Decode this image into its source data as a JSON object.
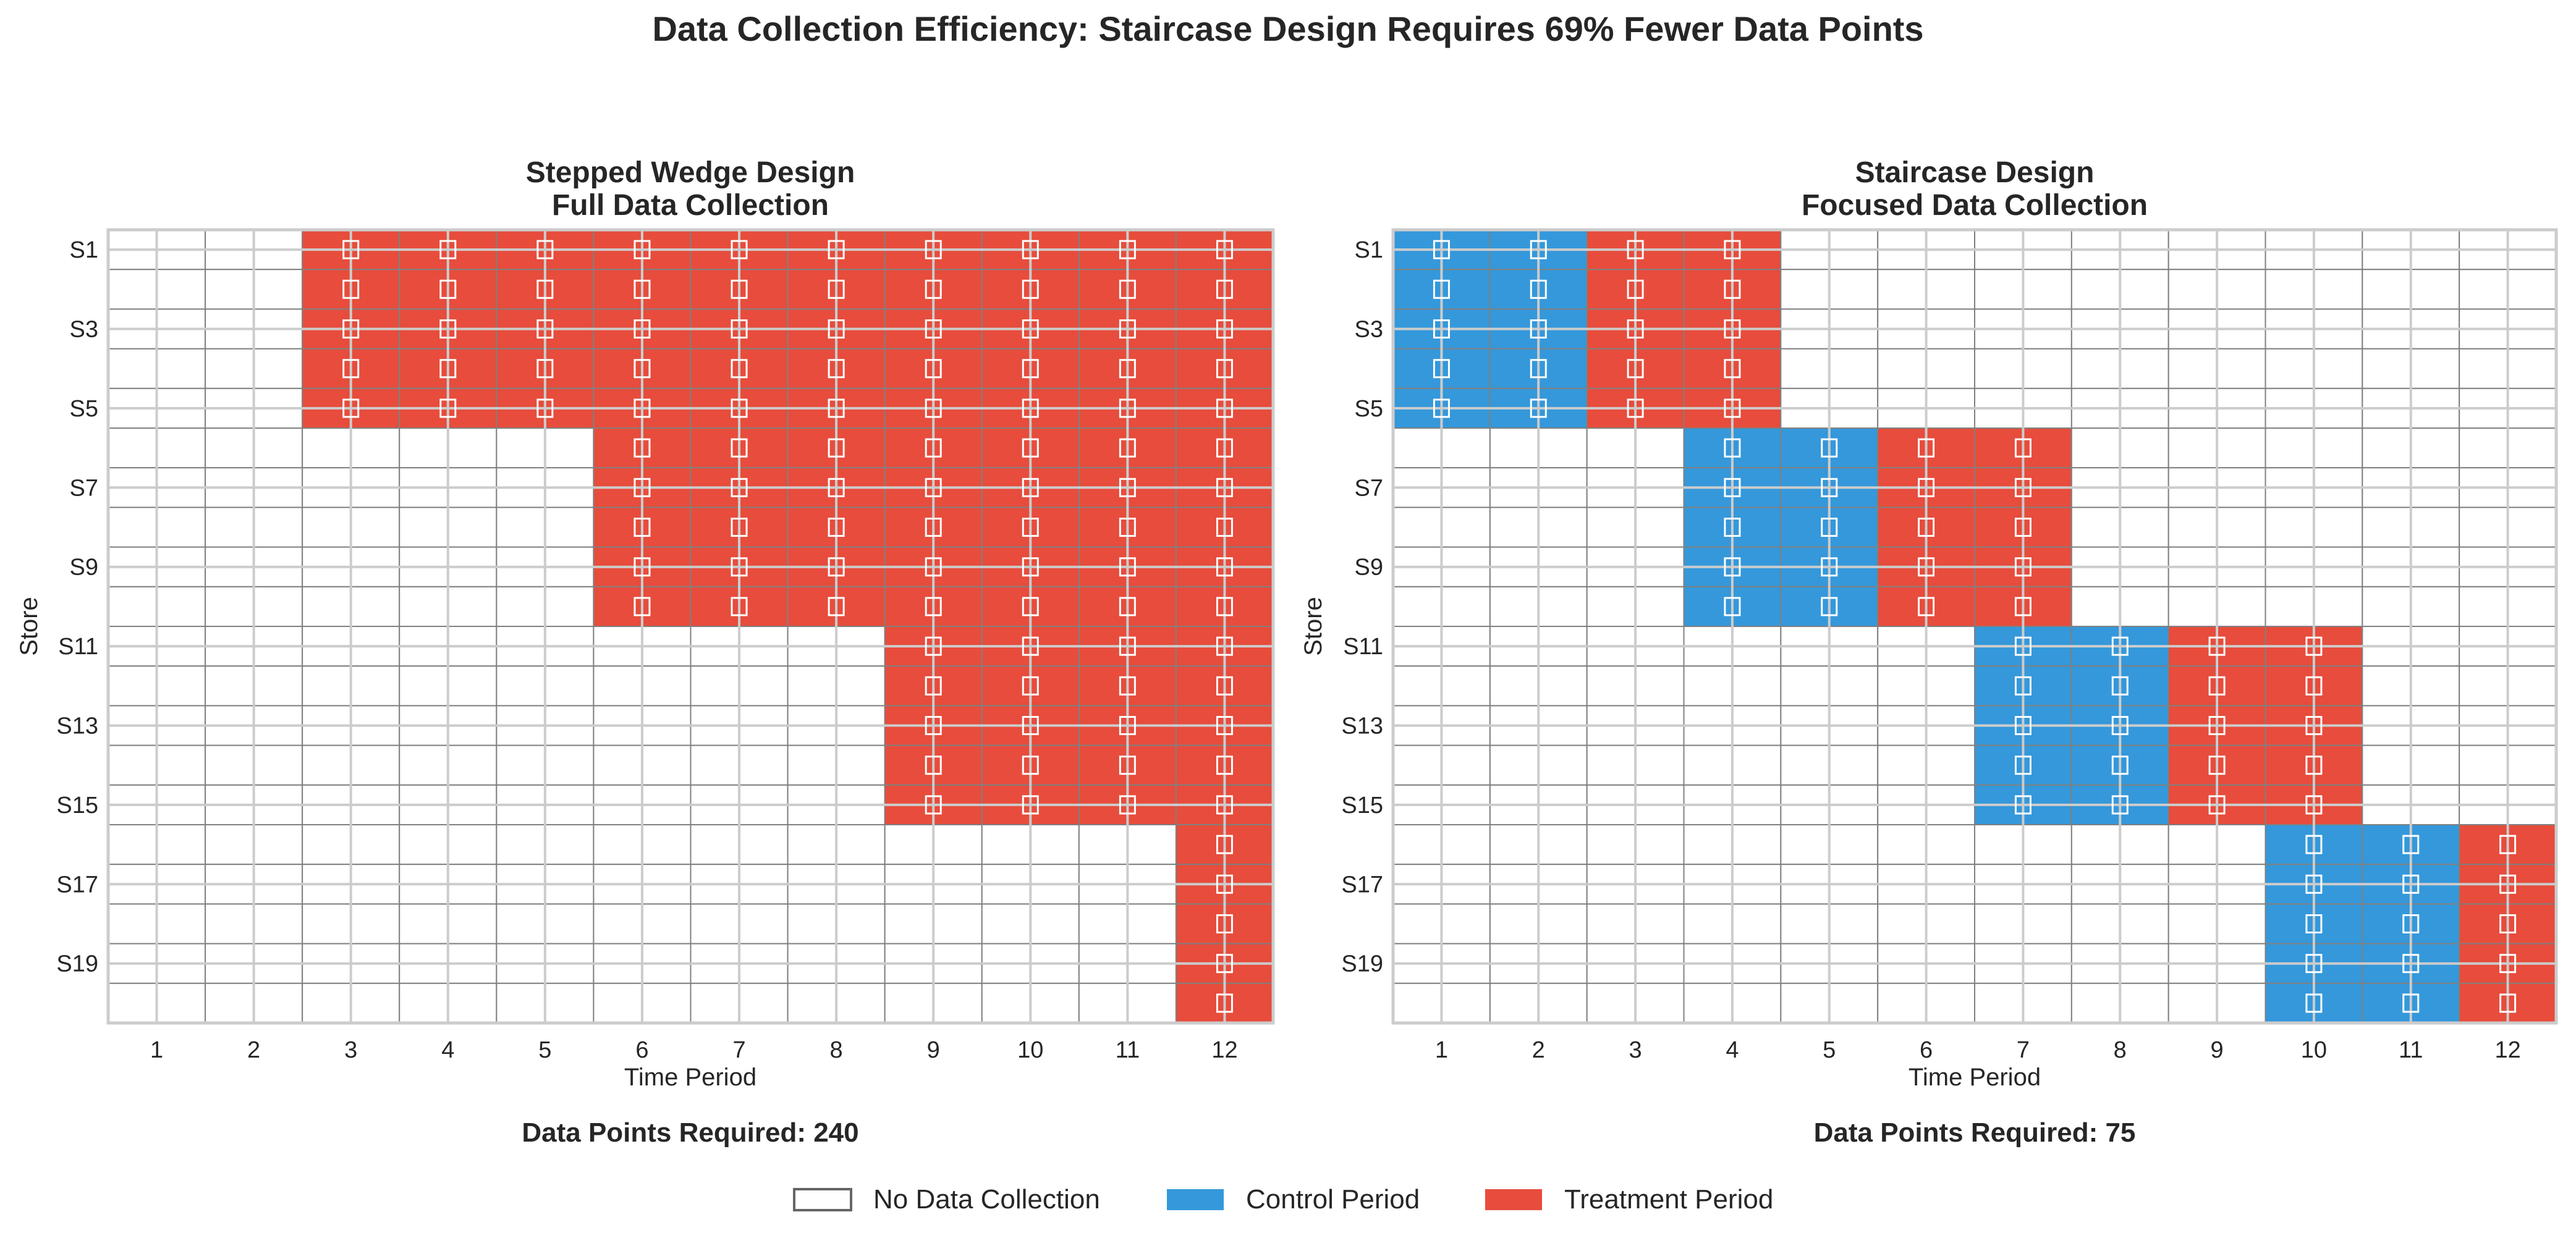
{
  "title": "Data Collection Efficiency: Staircase Design Requires 69% Fewer Data Points",
  "colors": {
    "control": "#3498db",
    "treatment": "#e74c3c",
    "none": "#ffffff",
    "marker": "#ffffff"
  },
  "legend": {
    "placement": "bottom-center",
    "items": [
      {
        "label": "No Data Collection",
        "key": "none"
      },
      {
        "label": "Control Period",
        "key": "control"
      },
      {
        "label": "Treatment Period",
        "key": "treatment"
      }
    ]
  },
  "chart_data": [
    {
      "type": "heatmap",
      "title_line1": "Stepped Wedge Design",
      "title_line2": "Full Data Collection",
      "xlabel": "Time Period",
      "ylabel": "Store",
      "x_ticks": [
        "1",
        "2",
        "3",
        "4",
        "5",
        "6",
        "7",
        "8",
        "9",
        "10",
        "11",
        "12"
      ],
      "y_ticks": [
        "S1",
        "S3",
        "S5",
        "S7",
        "S9",
        "S11",
        "S13",
        "S15",
        "S17",
        "S19"
      ],
      "stores": 20,
      "periods": 12,
      "grid": true,
      "groups": [
        {
          "stores": [
            1,
            5
          ],
          "control_periods": [],
          "treatment_periods": [
            3,
            12
          ]
        },
        {
          "stores": [
            6,
            10
          ],
          "control_periods": [],
          "treatment_periods": [
            6,
            12
          ]
        },
        {
          "stores": [
            11,
            15
          ],
          "control_periods": [],
          "treatment_periods": [
            9,
            12
          ]
        },
        {
          "stores": [
            16,
            20
          ],
          "control_periods": [],
          "treatment_periods": [
            12,
            12
          ]
        }
      ],
      "footer": "Data Points Required: 240"
    },
    {
      "type": "heatmap",
      "title_line1": "Staircase Design",
      "title_line2": "Focused Data Collection",
      "xlabel": "Time Period",
      "ylabel": "Store",
      "x_ticks": [
        "1",
        "2",
        "3",
        "4",
        "5",
        "6",
        "7",
        "8",
        "9",
        "10",
        "11",
        "12"
      ],
      "y_ticks": [
        "S1",
        "S3",
        "S5",
        "S7",
        "S9",
        "S11",
        "S13",
        "S15",
        "S17",
        "S19"
      ],
      "stores": 20,
      "periods": 12,
      "grid": true,
      "groups": [
        {
          "stores": [
            1,
            5
          ],
          "control_periods": [
            1,
            2
          ],
          "treatment_periods": [
            3,
            4
          ]
        },
        {
          "stores": [
            6,
            10
          ],
          "control_periods": [
            4,
            5
          ],
          "treatment_periods": [
            6,
            7
          ]
        },
        {
          "stores": [
            11,
            15
          ],
          "control_periods": [
            7,
            8
          ],
          "treatment_periods": [
            9,
            10
          ]
        },
        {
          "stores": [
            16,
            20
          ],
          "control_periods": [
            10,
            11
          ],
          "treatment_periods": [
            12,
            12
          ]
        }
      ],
      "footer": "Data Points Required: 75"
    }
  ]
}
